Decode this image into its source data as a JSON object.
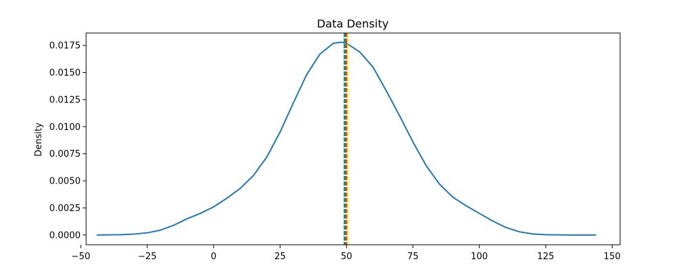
{
  "chart_data": {
    "type": "line",
    "title": "Data Density",
    "xlabel": "",
    "ylabel": "Density",
    "xlim": [
      -48,
      153
    ],
    "ylim": [
      -0.0009,
      0.01865
    ],
    "x_ticks": [
      -50,
      -25,
      0,
      25,
      50,
      75,
      100,
      125,
      150
    ],
    "x_tick_labels": [
      "−50",
      "−25",
      "0",
      "25",
      "50",
      "75",
      "100",
      "125",
      "150"
    ],
    "y_ticks": [
      0.0,
      0.0025,
      0.005,
      0.0075,
      0.01,
      0.0125,
      0.015,
      0.0175
    ],
    "y_tick_labels": [
      "0.0000",
      "0.0025",
      "0.0050",
      "0.0075",
      "0.0100",
      "0.0125",
      "0.0150",
      "0.0175"
    ],
    "grid": false,
    "series": [
      {
        "color": "#1f77b4",
        "x": [
          -44,
          -40,
          -35,
          -30,
          -25,
          -20,
          -15,
          -10,
          -5,
          0,
          5,
          10,
          15,
          20,
          25,
          30,
          35,
          40,
          45,
          48,
          50,
          55,
          60,
          65,
          70,
          75,
          80,
          85,
          90,
          95,
          100,
          105,
          110,
          115,
          120,
          125,
          130,
          135,
          140,
          144
        ],
        "y": [
          0.0,
          1e-05,
          3e-05,
          8e-05,
          0.0002,
          0.00045,
          0.0009,
          0.0015,
          0.002,
          0.0026,
          0.0034,
          0.0043,
          0.0055,
          0.0072,
          0.0095,
          0.0122,
          0.0148,
          0.0167,
          0.0177,
          0.0178,
          0.0177,
          0.0169,
          0.0155,
          0.0133,
          0.011,
          0.0086,
          0.0064,
          0.0047,
          0.0035,
          0.0027,
          0.002,
          0.0013,
          0.0007,
          0.0003,
          0.0001,
          3e-05,
          1e-05,
          0.0,
          0.0,
          0.0
        ]
      }
    ],
    "vlines": [
      {
        "x": 49.2,
        "color": "#1f77b4",
        "style": "dashed"
      },
      {
        "x": 49.6,
        "color": "#2ca02c",
        "style": "dashed"
      },
      {
        "x": 50.0,
        "color": "#d62728",
        "style": "dashed"
      },
      {
        "x": 50.4,
        "color": "#ffd700",
        "style": "dashed"
      }
    ]
  }
}
